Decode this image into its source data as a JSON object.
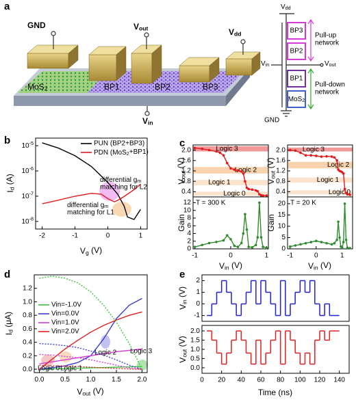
{
  "diagram": {
    "panel_label": "a",
    "device": {
      "gnd": "GND",
      "vout": {
        "base": "V",
        "sub": "out"
      },
      "vdd": {
        "base": "V",
        "sub": "dd"
      },
      "mos2": {
        "base": "MoS",
        "sub": "2"
      },
      "bp1": "BP1",
      "bp2": "BP2",
      "bp3": "BP3",
      "vin": {
        "base": "V",
        "sub": "in"
      }
    },
    "circuit": {
      "vdd": {
        "base": "V",
        "sub": "dd"
      },
      "bp3": "BP3",
      "bp2": "BP2",
      "vin": {
        "base": "V",
        "sub": "in"
      },
      "vout": {
        "base": "V",
        "sub": "out"
      },
      "bp1": "BP1",
      "mos2": {
        "base": "MoS",
        "sub": "2"
      },
      "gnd": "GND",
      "pull_up": [
        "Pull-up",
        "network"
      ],
      "pull_down": [
        "Pull-down",
        "network"
      ]
    }
  },
  "chart_data": [
    {
      "type": "line",
      "panel_label": "b",
      "ylog": true,
      "xlim": [
        -2.2,
        1.2
      ],
      "ylim": [
        5e-09,
        2e-05
      ],
      "xticks": [
        -2,
        -1,
        0,
        1
      ],
      "yticks": [
        {
          "value": 1e-08,
          "label": "10",
          "exp": "-8"
        },
        {
          "value": 1e-07,
          "label": "10",
          "exp": "-7"
        },
        {
          "value": 1e-06,
          "label": "10",
          "exp": "-6"
        },
        {
          "value": 1e-05,
          "label": "10",
          "exp": "-5"
        }
      ],
      "x_label": {
        "base": "V",
        "sub": "g",
        "unit": " (V)"
      },
      "y_label": {
        "base": "I",
        "sub": "d",
        "unit": " (A)"
      },
      "legend": "upper right",
      "series": [
        {
          "name": "PUN (BP2+BP3)",
          "color": "#000000",
          "x": [
            -2,
            -1.5,
            -1,
            -0.5,
            0,
            0.3,
            0.5,
            0.6,
            0.8,
            1.0
          ],
          "values": [
            1.3e-05,
            8e-06,
            4e-06,
            1.5e-06,
            3.5e-07,
            1.2e-07,
            4e-08,
            1.5e-08,
            1.2e-08,
            3e-08
          ]
        },
        {
          "name": {
            "base": "PDN (MoS",
            "sub": "2",
            "unit": "+BP1)"
          },
          "color": "#e31a1c",
          "x": [
            -2,
            -1.5,
            -1,
            -0.5,
            -0.2,
            0,
            0.2,
            0.4,
            0.6,
            0.8,
            1.0
          ],
          "values": [
            5e-08,
            7e-08,
            1e-07,
            1.3e-07,
            1.2e-07,
            8e-08,
            6e-08,
            8e-08,
            1.2e-07,
            1.8e-07,
            3e-07
          ]
        }
      ],
      "annotations": [
        {
          "lines": [
            {
              "base": "differential g",
              "sub": "m"
            },
            "matching for L2"
          ],
          "color": "#e040e0"
        },
        {
          "lines": [
            {
              "base": "differential g",
              "sub": "m"
            },
            "matching for L1"
          ],
          "color": "#e8901e"
        }
      ]
    },
    {
      "type": "line",
      "panel_label": "c",
      "xlim": [
        -1.05,
        1.05
      ],
      "ylim": [
        0.2,
        2.2
      ],
      "yticks": [
        0.4,
        0.8,
        1.2,
        1.6,
        {
          "value": 2,
          "label": "2.0"
        }
      ],
      "y_label": {
        "base": "V",
        "sub": "out",
        "unit": " (V)"
      },
      "bands": [
        {
          "label": "Logic 3",
          "range": [
            1.95,
            2.15
          ],
          "color": "#f08080"
        },
        {
          "label": "Logic 2",
          "range": [
            1.1,
            1.35
          ],
          "color": "#f7c79a"
        },
        {
          "label": "Logic 1",
          "range": [
            0.65,
            0.85
          ],
          "color": "#fbdcc0"
        },
        {
          "label": "Logic 0",
          "range": [
            0.25,
            0.4
          ],
          "color": "#fbdcc0"
        }
      ],
      "series": [
        {
          "color": "#e31a1c",
          "marker": "circle",
          "x": [
            -1,
            -0.8,
            -0.6,
            -0.4,
            -0.3,
            -0.2,
            -0.1,
            0,
            0.1,
            0.2,
            0.3,
            0.35,
            0.4,
            0.45,
            0.5,
            0.6,
            0.7,
            0.75,
            0.8,
            0.85,
            0.9,
            1.0
          ],
          "values": [
            2.08,
            2.05,
            2.0,
            1.95,
            1.9,
            1.8,
            1.5,
            1.3,
            1.25,
            1.22,
            1.18,
            1.1,
            0.8,
            0.55,
            0.5,
            0.48,
            0.45,
            0.42,
            0.3,
            0.26,
            0.25,
            0.25
          ]
        }
      ]
    },
    {
      "type": "line",
      "xlim": [
        -1.05,
        1.05
      ],
      "ylim": [
        0,
        13.5
      ],
      "xticks": [
        -1,
        0,
        1
      ],
      "yticks": [
        0,
        2,
        4,
        6,
        8,
        10,
        12
      ],
      "x_label": {
        "base": "V",
        "sub": "in",
        "unit": " (V)"
      },
      "y_label": "Gain",
      "annotations": [
        {
          "lines": [
            "T = 300 K"
          ],
          "color": "#000000"
        }
      ],
      "series": [
        {
          "color": "#2e8b2e",
          "marker": "circle",
          "x": [
            -1,
            -0.8,
            -0.6,
            -0.4,
            -0.2,
            -0.1,
            0,
            0.1,
            0.2,
            0.3,
            0.35,
            0.4,
            0.45,
            0.5,
            0.6,
            0.7,
            0.75,
            0.8,
            0.85,
            0.9,
            1.0
          ],
          "values": [
            0.5,
            1.0,
            1.5,
            1.8,
            2.2,
            3.5,
            2.5,
            0.8,
            0.5,
            1.5,
            4,
            9,
            5,
            0.5,
            0.4,
            1,
            3,
            12,
            3,
            0.5,
            0.3
          ]
        }
      ]
    },
    {
      "type": "line",
      "xlim": [
        -1.1,
        1.4
      ],
      "ylim": [
        0.2,
        2.2
      ],
      "yticks": [
        0.4,
        0.8,
        1.2,
        1.6,
        {
          "value": 2,
          "label": "2.0"
        }
      ],
      "y_label": {
        "base": "V",
        "sub": "out",
        "unit": " (V)"
      },
      "bands": [
        {
          "label": "Logic 3",
          "range": [
            1.95,
            2.1
          ],
          "color": "#f08080"
        },
        {
          "label": "Logic 2",
          "range": [
            1.3,
            1.55
          ],
          "color": "#f7c79a"
        },
        {
          "label": "Logic 1",
          "range": [
            0.75,
            0.95
          ],
          "color": "#fbdcc0"
        },
        {
          "label": "Logic 0",
          "range": [
            0.3,
            0.45
          ],
          "color": "#fbdcc0"
        }
      ],
      "series": [
        {
          "color": "#e31a1c",
          "marker": "circle",
          "x": [
            -1,
            -0.8,
            -0.6,
            -0.4,
            -0.2,
            0,
            0.2,
            0.4,
            0.6,
            0.7,
            0.8,
            0.85,
            0.9,
            0.95,
            1.0,
            1.05,
            1.1,
            1.15,
            1.2,
            1.3
          ],
          "values": [
            2.0,
            1.98,
            1.9,
            1.8,
            1.8,
            1.78,
            1.75,
            1.76,
            1.75,
            1.72,
            1.6,
            1.25,
            1.2,
            1.18,
            1.15,
            1.1,
            0.5,
            0.35,
            0.3,
            0.28
          ]
        }
      ]
    },
    {
      "type": "line",
      "xlim": [
        -1.1,
        1.4
      ],
      "ylim": [
        0,
        23
      ],
      "xticks": [
        -1,
        0,
        1
      ],
      "yticks": [
        0,
        5,
        10,
        15,
        20
      ],
      "x_label": {
        "base": "V",
        "sub": "in",
        "unit": " (V)"
      },
      "y_label": "Gain",
      "annotations": [
        {
          "lines": [
            "T = 20 K"
          ],
          "color": "#000000"
        }
      ],
      "series": [
        {
          "color": "#2e8b2e",
          "marker": "circle",
          "x": [
            -1,
            -0.8,
            -0.6,
            -0.4,
            -0.2,
            0,
            0.2,
            0.4,
            0.6,
            0.7,
            0.8,
            0.85,
            0.9,
            0.95,
            1.0,
            1.05,
            1.1,
            1.15,
            1.2,
            1.3
          ],
          "values": [
            1,
            1.5,
            2,
            2.5,
            3,
            3.5,
            3,
            2.5,
            2,
            2.5,
            4,
            12,
            5,
            1,
            0.5,
            3,
            20,
            4,
            0.5,
            0.3
          ]
        }
      ]
    },
    {
      "type": "line",
      "panel_label": "d",
      "xlim": [
        -0.1,
        2.1
      ],
      "ylim": [
        -0.05,
        1.4
      ],
      "xticks": [
        {
          "value": 0,
          "label": "0.0"
        },
        {
          "value": 0.5,
          "label": "0.5"
        },
        {
          "value": 1,
          "label": "1.0"
        },
        {
          "value": 1.5,
          "label": "1.5"
        },
        {
          "value": 2,
          "label": "2.0"
        }
      ],
      "yticks": [
        {
          "value": 0,
          "label": "0.0"
        },
        {
          "value": 0.2,
          "label": "0.2"
        },
        {
          "value": 0.4,
          "label": "0.4"
        },
        {
          "value": 0.6,
          "label": "0.6"
        },
        {
          "value": 0.8,
          "label": "0.8"
        },
        {
          "value": 1,
          "label": "1.0"
        },
        {
          "value": 1.2,
          "label": "1.2"
        }
      ],
      "x_label": {
        "base": "V",
        "sub": "out",
        "unit": " (V)"
      },
      "y_label": {
        "base": "I",
        "sub": "d",
        "unit": " (μA)"
      },
      "legend": "upper left",
      "series": [
        {
          "name": "Vin=-1.0V",
          "color": "#3ac43a",
          "x": [
            0,
            0.25,
            0.5,
            0.75,
            1.0,
            1.25,
            1.5,
            1.75,
            2.0
          ],
          "values": [
            0,
            0.005,
            0.01,
            0.015,
            0.02,
            0.025,
            0.03,
            0.035,
            0.04
          ]
        },
        {
          "name": "Vin=0.0V",
          "color": "#3b3bdc",
          "x": [
            0,
            0.25,
            0.5,
            0.75,
            1.0,
            1.25,
            1.5,
            1.75,
            2.0
          ],
          "values": [
            0,
            0.02,
            0.05,
            0.1,
            0.2,
            0.45,
            0.75,
            0.95,
            1.05
          ]
        },
        {
          "name": "Vin=1.0V",
          "color": "#d63ad6",
          "x": [
            0,
            0.25,
            0.5,
            0.75,
            1.0,
            1.25,
            1.5,
            1.75,
            2.0
          ],
          "values": [
            0.08,
            0.11,
            0.14,
            0.17,
            0.2,
            0.23,
            0.26,
            0.28,
            0.3
          ]
        },
        {
          "name": "Vin=2.0V",
          "color": "#e02020",
          "x": [
            0,
            0.25,
            0.5,
            0.75,
            1.0,
            1.25,
            1.5,
            1.75,
            2.0
          ],
          "values": [
            0,
            0.15,
            0.3,
            0.43,
            0.55,
            0.65,
            0.73,
            0.8,
            0.85
          ]
        },
        {
          "color": "#3ac43a",
          "dash": true,
          "x": [
            0,
            0.25,
            0.5,
            0.75,
            1.0,
            1.25,
            1.5,
            1.75,
            2.0
          ],
          "values": [
            1.35,
            1.38,
            1.35,
            1.28,
            1.15,
            0.95,
            0.7,
            0.38,
            0
          ]
        },
        {
          "color": "#3b3bdc",
          "dash": true,
          "x": [
            0,
            0.25,
            0.5,
            0.75,
            1.0,
            1.25,
            1.5,
            1.75,
            2.0
          ],
          "values": [
            0.38,
            0.37,
            0.35,
            0.32,
            0.27,
            0.21,
            0.14,
            0.06,
            0
          ]
        },
        {
          "color": "#d63ad6",
          "dash": true,
          "x": [
            0,
            0.25,
            0.5,
            0.75,
            1.0,
            1.25,
            1.5,
            1.75,
            2.0
          ],
          "values": [
            0.22,
            0.21,
            0.19,
            0.17,
            0.14,
            0.1,
            0.06,
            0.02,
            0
          ]
        },
        {
          "color": "#e02020",
          "dash": true,
          "x": [
            0,
            0.25,
            0.5,
            0.75,
            1.0,
            1.25,
            1.5,
            1.75,
            2.0
          ],
          "values": [
            0.06,
            0.05,
            0.045,
            0.04,
            0.03,
            0.02,
            0.012,
            0.005,
            0
          ]
        }
      ],
      "annotations": [
        {
          "lines": [
            "Logic 0"
          ],
          "color": "#c02020"
        },
        {
          "lines": [
            "Logic 1"
          ],
          "color": "#c8a000"
        },
        {
          "lines": [
            "Logic 2"
          ],
          "color": "#3b3bdc"
        },
        {
          "lines": [
            "Logic 3"
          ],
          "color": "#2eaa2e"
        }
      ]
    },
    {
      "type": "line",
      "panel_label": "e",
      "xlim": [
        0,
        150
      ],
      "ylim": [
        -1.5,
        2.5
      ],
      "yticks": [
        -1,
        0,
        1,
        2
      ],
      "y_label": {
        "base": "V",
        "sub": "in",
        "unit": " (V)"
      },
      "series": [
        {
          "color": "#1f1fd6",
          "step": true,
          "x": [
            5,
            10,
            15,
            20,
            25,
            30,
            35,
            40,
            45,
            50,
            55,
            60,
            65,
            70,
            75,
            80,
            85,
            90,
            95,
            100,
            105,
            110,
            115,
            120,
            125,
            130,
            135,
            140
          ],
          "values": [
            -1,
            0,
            1,
            2,
            1,
            0,
            -1,
            0,
            1,
            2,
            0,
            2,
            1,
            0,
            -1,
            2,
            -1,
            0,
            1,
            2,
            1,
            2,
            0,
            -1,
            0,
            -1,
            -1,
            -1
          ]
        }
      ]
    },
    {
      "type": "line",
      "xlim": [
        0,
        150
      ],
      "ylim": [
        -0.3,
        2.3
      ],
      "xticks": [
        0,
        20,
        40,
        60,
        80,
        100,
        120,
        140
      ],
      "yticks": [
        {
          "value": 0,
          "label": "0.0"
        },
        {
          "value": 0.5,
          "label": "0.5"
        },
        {
          "value": 1,
          "label": "1.0"
        },
        {
          "value": 1.5,
          "label": "1.5"
        },
        {
          "value": 2,
          "label": "2.0"
        }
      ],
      "x_label": "Time (ns)",
      "y_label": {
        "base": "V",
        "sub": "out",
        "unit": " (V)"
      },
      "series": [
        {
          "color": "#e02020",
          "step": true,
          "x": [
            5,
            10,
            15,
            20,
            25,
            30,
            35,
            40,
            45,
            50,
            55,
            60,
            65,
            70,
            75,
            80,
            85,
            90,
            95,
            100,
            105,
            110,
            115,
            120,
            125,
            130,
            135,
            140
          ],
          "values": [
            2.0,
            1.5,
            0.8,
            0.2,
            0.8,
            1.5,
            2.0,
            1.5,
            0.8,
            0.2,
            1.5,
            0.2,
            0.8,
            1.5,
            2.0,
            0.2,
            2.0,
            1.5,
            0.8,
            0.2,
            0.8,
            0.2,
            1.5,
            2.0,
            1.5,
            2.0,
            2.0,
            2.0
          ]
        }
      ]
    }
  ]
}
